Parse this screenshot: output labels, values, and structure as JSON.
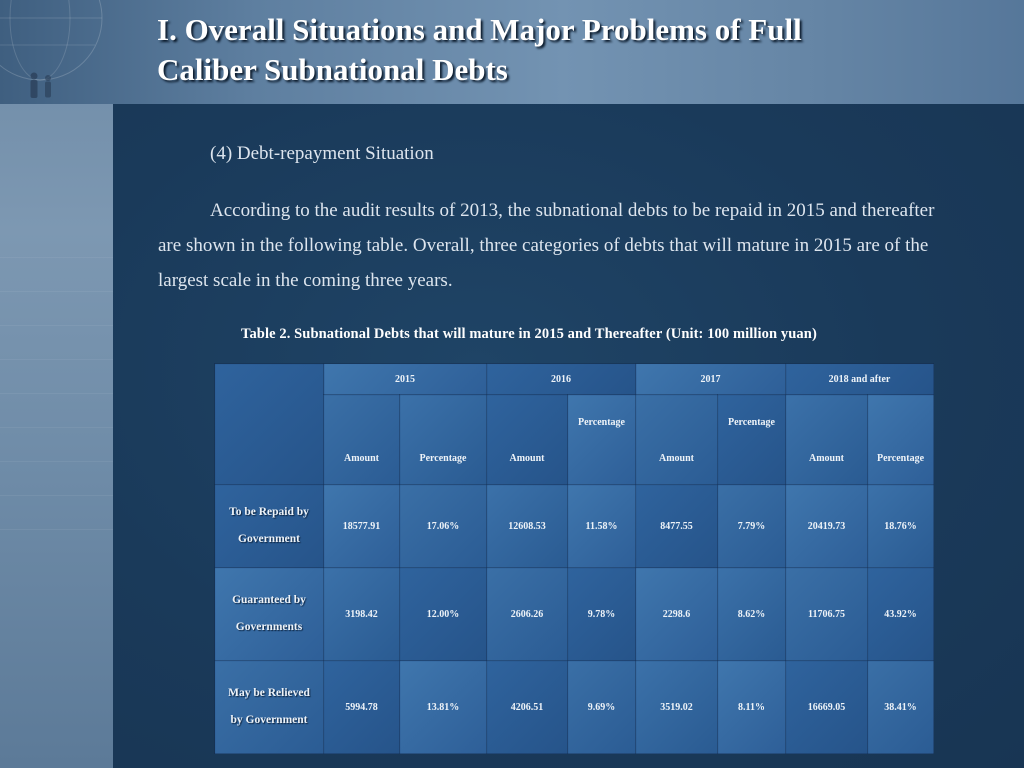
{
  "header": {
    "title_line1": "I. Overall Situations and Major Problems of Full",
    "title_line2": "Caliber Subnational Debts"
  },
  "body": {
    "subheading": "(4) Debt-repayment Situation",
    "paragraph": "According to the audit results of 2013, the subnational debts to be repaid in 2015 and thereafter are shown in the following table. Overall, three categories of debts that will mature in 2015 are of the largest scale in the coming three years."
  },
  "table": {
    "caption": "Table 2. Subnational Debts that will mature in 2015 and Thereafter (Unit: 100 million yuan)",
    "years": [
      "2015",
      "2016",
      "2017",
      "2018  and after"
    ],
    "sub_headers": [
      "Amount",
      "Percentage",
      "Amount",
      "Percentage",
      "Amount",
      "Percentage",
      "Amount",
      "Percentage"
    ],
    "rows": [
      {
        "label_line1": "To be Repaid by",
        "label_line2": "Government",
        "cells": [
          "18577.91",
          "17.06%",
          "12608.53",
          "11.58%",
          "8477.55",
          "7.79%",
          "20419.73",
          "18.76%"
        ]
      },
      {
        "label_line1": "Guaranteed by",
        "label_line2": "Governments",
        "cells": [
          "3198.42",
          "12.00%",
          "2606.26",
          "9.78%",
          "2298.6",
          "8.62%",
          "11706.75",
          "43.92%"
        ]
      },
      {
        "label_line1": "May be Relieved",
        "label_line2": "by Government",
        "cells": [
          "5994.78",
          "13.81%",
          "4206.51",
          "9.69%",
          "3519.02",
          "8.11%",
          "16669.05",
          "38.41%"
        ]
      }
    ]
  },
  "colors": {
    "panel": "#1a3a5a",
    "header": "#6585a5",
    "table_cell": "#2f639d"
  }
}
